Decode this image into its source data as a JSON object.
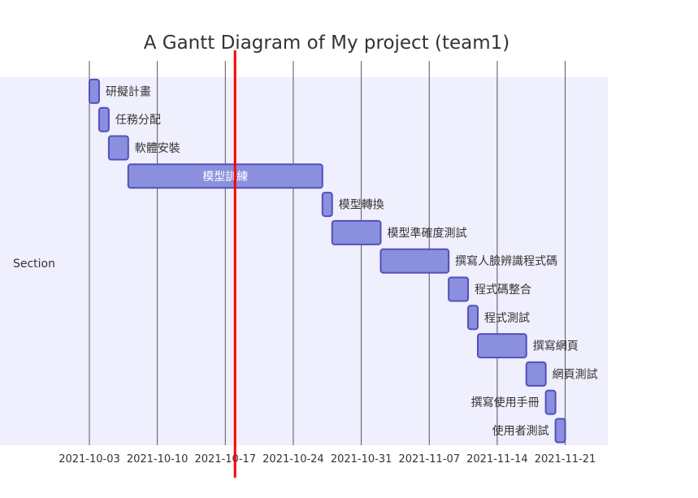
{
  "chart_data": {
    "type": "gantt",
    "title": "A Gantt Diagram of My project (team1)",
    "section": "Section",
    "x_ticks": [
      "2021-10-03",
      "2021-10-10",
      "2021-10-17",
      "2021-10-24",
      "2021-10-31",
      "2021-11-07",
      "2021-11-14",
      "2021-11-21"
    ],
    "today": "2021-10-18",
    "tasks": [
      {
        "name": "研擬計畫",
        "start": "2021-10-03",
        "end": "2021-10-04"
      },
      {
        "name": "任務分配",
        "start": "2021-10-04",
        "end": "2021-10-05"
      },
      {
        "name": "軟體安裝",
        "start": "2021-10-05",
        "end": "2021-10-07"
      },
      {
        "name": "模型訓練",
        "start": "2021-10-07",
        "end": "2021-10-27"
      },
      {
        "name": "模型轉換",
        "start": "2021-10-27",
        "end": "2021-10-28"
      },
      {
        "name": "模型準確度測試",
        "start": "2021-10-28",
        "end": "2021-11-02"
      },
      {
        "name": "撰寫人臉辨識程式碼",
        "start": "2021-11-02",
        "end": "2021-11-09"
      },
      {
        "name": "程式碼整合",
        "start": "2021-11-09",
        "end": "2021-11-11"
      },
      {
        "name": "程式測試",
        "start": "2021-11-11",
        "end": "2021-11-12"
      },
      {
        "name": "撰寫網頁",
        "start": "2021-11-12",
        "end": "2021-11-17"
      },
      {
        "name": "網頁測試",
        "start": "2021-11-17",
        "end": "2021-11-19"
      },
      {
        "name": "撰寫使用手冊",
        "start": "2021-11-19",
        "end": "2021-11-20"
      },
      {
        "name": "使用者測試",
        "start": "2021-11-20",
        "end": "2021-11-21"
      }
    ],
    "colors": {
      "section_bg": "#efeffd",
      "bar_fill": "#8a90dd",
      "bar_stroke": "#534fbc",
      "grid": "#555555",
      "today": "#ff0000"
    }
  }
}
